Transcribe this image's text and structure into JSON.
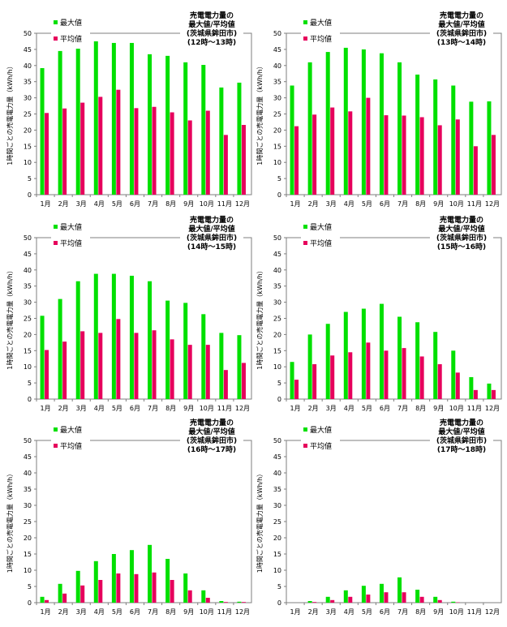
{
  "chart_data": [
    {
      "type": "bar",
      "title_lines": [
        "売電電力量の",
        "最大値/平均値",
        "(茨城県鉾田市)",
        "(12時～13時)"
      ],
      "ylabel": "1時間ごとの売電電力量（kWh/h）",
      "categories": [
        "1月",
        "2月",
        "3月",
        "4月",
        "5月",
        "6月",
        "7月",
        "8月",
        "9月",
        "10月",
        "11月",
        "12月"
      ],
      "ylim": [
        0,
        50
      ],
      "yticks": [
        "0",
        "5",
        "10",
        "15",
        "20",
        "25",
        "30",
        "35",
        "40",
        "45",
        "50"
      ],
      "grid": false,
      "legend_position": "top-left",
      "series": [
        {
          "name": "最大値",
          "color": "#00e000",
          "values": [
            39.2,
            44.5,
            46.8,
            47.5,
            47.0,
            47.0,
            43.5,
            43.0,
            41.0,
            40.2,
            33.2,
            34.7
          ]
        },
        {
          "name": "平均値",
          "color": "#e6005c",
          "values": [
            25.3,
            26.7,
            28.5,
            30.3,
            32.5,
            26.8,
            27.2,
            25.5,
            23.0,
            26.0,
            18.5,
            21.6
          ]
        }
      ]
    },
    {
      "type": "bar",
      "title_lines": [
        "売電電力量の",
        "最大値/平均値",
        "(茨城県鉾田市)",
        "(13時～14時)"
      ],
      "ylabel": "1時間ごとの売電電力量（kWh/h）",
      "categories": [
        "1月",
        "2月",
        "3月",
        "4月",
        "5月",
        "6月",
        "7月",
        "8月",
        "9月",
        "10月",
        "11月",
        "12月"
      ],
      "ylim": [
        0,
        50
      ],
      "yticks": [
        "0",
        "5",
        "10",
        "15",
        "20",
        "25",
        "30",
        "35",
        "40",
        "45",
        "50"
      ],
      "grid": false,
      "legend_position": "top-left",
      "series": [
        {
          "name": "最大値",
          "color": "#00e000",
          "values": [
            33.8,
            41.0,
            44.2,
            45.5,
            45.0,
            43.8,
            41.0,
            37.2,
            35.7,
            33.8,
            28.8,
            28.9
          ]
        },
        {
          "name": "平均値",
          "color": "#e6005c",
          "values": [
            21.2,
            24.8,
            27.0,
            25.8,
            30.0,
            24.6,
            24.5,
            24.0,
            21.5,
            23.3,
            15.0,
            18.5
          ]
        }
      ]
    },
    {
      "type": "bar",
      "title_lines": [
        "売電電力量の",
        "最大値/平均値",
        "(茨城県鉾田市)",
        "(14時～15時)"
      ],
      "ylabel": "1時間ごとの売電電力量（kWh/h）",
      "categories": [
        "1月",
        "2月",
        "3月",
        "4月",
        "5月",
        "6月",
        "7月",
        "8月",
        "9月",
        "10月",
        "11月",
        "12月"
      ],
      "ylim": [
        0,
        50
      ],
      "yticks": [
        "0",
        "5",
        "10",
        "15",
        "20",
        "25",
        "30",
        "35",
        "40",
        "45",
        "50"
      ],
      "grid": false,
      "legend_position": "top-left",
      "series": [
        {
          "name": "最大値",
          "color": "#00e000",
          "values": [
            25.8,
            31.0,
            36.5,
            38.8,
            38.8,
            38.2,
            36.5,
            30.5,
            29.8,
            26.3,
            20.5,
            19.8
          ]
        },
        {
          "name": "平均値",
          "color": "#e6005c",
          "values": [
            15.2,
            17.8,
            21.0,
            20.5,
            24.8,
            20.5,
            21.3,
            18.5,
            16.8,
            16.8,
            9.0,
            11.2
          ]
        }
      ]
    },
    {
      "type": "bar",
      "title_lines": [
        "売電電力量の",
        "最大値/平均値",
        "(茨城県鉾田市)",
        "(15時～16時)"
      ],
      "ylabel": "1時間ごとの売電電力量（kWh/h）",
      "categories": [
        "1月",
        "2月",
        "3月",
        "4月",
        "5月",
        "6月",
        "7月",
        "8月",
        "9月",
        "10月",
        "11月",
        "12月"
      ],
      "ylim": [
        0,
        50
      ],
      "yticks": [
        "0",
        "5",
        "10",
        "15",
        "20",
        "25",
        "30",
        "35",
        "40",
        "45",
        "50"
      ],
      "grid": false,
      "legend_position": "top-left",
      "series": [
        {
          "name": "最大値",
          "color": "#00e000",
          "values": [
            11.5,
            20.0,
            23.3,
            27.0,
            28.0,
            29.5,
            25.5,
            23.8,
            20.8,
            15.0,
            6.8,
            4.8
          ]
        },
        {
          "name": "平均値",
          "color": "#e6005c",
          "values": [
            6.0,
            10.8,
            13.5,
            14.5,
            17.5,
            15.0,
            15.8,
            13.2,
            10.8,
            8.2,
            2.8,
            2.8
          ]
        }
      ]
    },
    {
      "type": "bar",
      "title_lines": [
        "売電電力量の",
        "最大値/平均値",
        "(茨城県鉾田市)",
        "(16時～17時)"
      ],
      "ylabel": "1時間ごとの売電電力量（kWh/h）",
      "categories": [
        "1月",
        "2月",
        "3月",
        "4月",
        "5月",
        "6月",
        "7月",
        "8月",
        "9月",
        "10月",
        "11月",
        "12月"
      ],
      "ylim": [
        0,
        50
      ],
      "yticks": [
        "0",
        "5",
        "10",
        "15",
        "20",
        "25",
        "30",
        "35",
        "40",
        "45",
        "50"
      ],
      "grid": false,
      "legend_position": "top-left",
      "series": [
        {
          "name": "最大値",
          "color": "#00e000",
          "values": [
            1.8,
            5.8,
            9.8,
            12.8,
            15.0,
            16.2,
            17.8,
            13.5,
            9.0,
            3.8,
            0.5,
            0.3
          ]
        },
        {
          "name": "平均値",
          "color": "#e6005c",
          "values": [
            0.8,
            2.8,
            5.3,
            7.0,
            9.0,
            8.8,
            9.3,
            7.0,
            3.8,
            1.5,
            0.2,
            0.2
          ]
        }
      ]
    },
    {
      "type": "bar",
      "title_lines": [
        "売電電力量の",
        "最大値/平均値",
        "(茨城県鉾田市)",
        "(17時～18時)"
      ],
      "ylabel": "1時間ごとの売電電力量（kWh/h）",
      "categories": [
        "1月",
        "2月",
        "3月",
        "4月",
        "5月",
        "6月",
        "7月",
        "8月",
        "9月",
        "10月",
        "11月",
        "12月"
      ],
      "ylim": [
        0,
        50
      ],
      "yticks": [
        "0",
        "5",
        "10",
        "15",
        "20",
        "25",
        "30",
        "35",
        "40",
        "45",
        "50"
      ],
      "grid": false,
      "legend_position": "top-left",
      "series": [
        {
          "name": "最大値",
          "color": "#00e000",
          "values": [
            0.0,
            0.5,
            1.8,
            3.8,
            5.2,
            5.8,
            7.8,
            4.0,
            1.8,
            0.3,
            0.0,
            0.0
          ]
        },
        {
          "name": "平均値",
          "color": "#e6005c",
          "values": [
            0.0,
            0.2,
            0.8,
            1.8,
            2.5,
            3.2,
            3.2,
            1.8,
            0.8,
            0.1,
            0.0,
            0.0
          ]
        }
      ]
    }
  ]
}
